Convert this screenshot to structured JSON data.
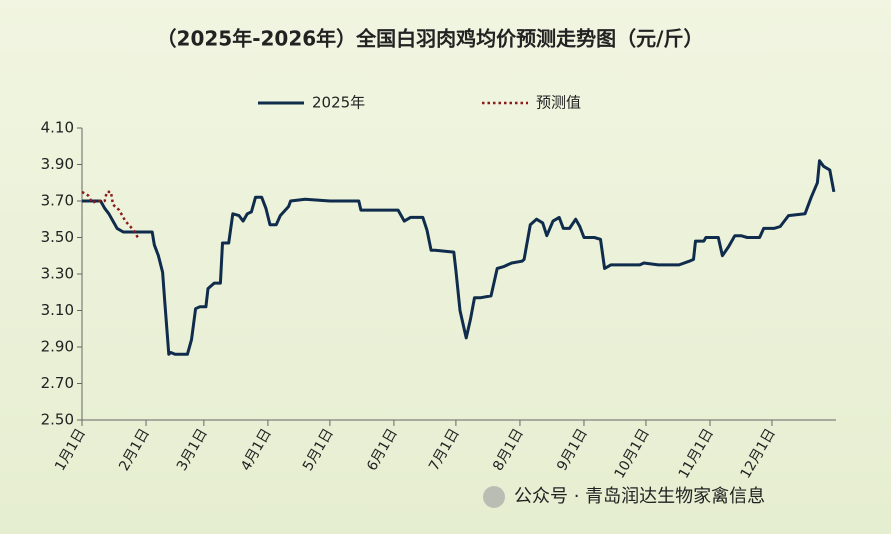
{
  "chart_data": {
    "type": "line",
    "title": "（2025年-2026年）全国白羽肉鸡均价预测走势图（元/斤）",
    "watermark": "公众号 · 青岛润达生物家禽信息",
    "xlim": [
      0,
      365
    ],
    "xticks": [
      {
        "value": 0,
        "label": "1月1日"
      },
      {
        "value": 31,
        "label": "2月1日"
      },
      {
        "value": 59,
        "label": "3月1日"
      },
      {
        "value": 90,
        "label": "4月1日"
      },
      {
        "value": 120,
        "label": "5月1日"
      },
      {
        "value": 151,
        "label": "6月1日"
      },
      {
        "value": 181,
        "label": "7月1日"
      },
      {
        "value": 212,
        "label": "8月1日"
      },
      {
        "value": 243,
        "label": "9月1日"
      },
      {
        "value": 273,
        "label": "10月1日"
      },
      {
        "value": 304,
        "label": "11月1日"
      },
      {
        "value": 334,
        "label": "12月1日"
      }
    ],
    "ylim": [
      2.5,
      4.1
    ],
    "yticks": [
      {
        "value": 2.5,
        "label": "2.50"
      },
      {
        "value": 2.7,
        "label": "2.70"
      },
      {
        "value": 2.9,
        "label": "2.90"
      },
      {
        "value": 3.1,
        "label": "3.10"
      },
      {
        "value": 3.3,
        "label": "3.30"
      },
      {
        "value": 3.5,
        "label": "3.50"
      },
      {
        "value": 3.7,
        "label": "3.70"
      },
      {
        "value": 3.9,
        "label": "3.90"
      },
      {
        "value": 4.1,
        "label": "4.10"
      }
    ],
    "grid": false,
    "series": [
      {
        "name": "2025年",
        "color": "#0f2c4c",
        "style": "solid",
        "x": [
          0,
          9,
          11,
          13,
          15,
          17,
          20,
          34,
          35,
          37,
          39,
          40,
          42,
          43,
          45,
          51,
          53,
          55,
          57,
          60,
          61,
          64,
          67,
          68,
          71,
          73,
          76,
          78,
          80,
          82,
          84,
          87,
          89,
          91,
          94,
          96,
          100,
          101,
          108,
          120,
          125,
          134,
          135,
          153,
          156,
          159,
          165,
          167,
          169,
          171,
          180,
          181,
          183,
          186,
          188,
          190,
          193,
          198,
          201,
          204,
          208,
          213,
          214,
          217,
          220,
          223,
          225,
          228,
          231,
          233,
          236,
          239,
          241,
          243,
          248,
          251,
          253,
          256,
          270,
          272,
          279,
          289,
          294,
          296,
          297,
          301,
          302,
          308,
          310,
          313,
          316,
          319,
          322,
          328,
          330,
          335,
          338,
          342,
          350,
          353,
          356,
          357,
          359,
          362,
          364
        ],
        "values": [
          3.7,
          3.7,
          3.66,
          3.63,
          3.59,
          3.55,
          3.53,
          3.53,
          3.46,
          3.4,
          3.31,
          3.16,
          2.86,
          2.87,
          2.86,
          2.86,
          2.94,
          3.11,
          3.12,
          3.12,
          3.22,
          3.25,
          3.25,
          3.47,
          3.47,
          3.63,
          3.62,
          3.59,
          3.63,
          3.64,
          3.72,
          3.72,
          3.66,
          3.57,
          3.57,
          3.62,
          3.67,
          3.7,
          3.71,
          3.7,
          3.7,
          3.7,
          3.65,
          3.65,
          3.59,
          3.61,
          3.61,
          3.54,
          3.43,
          3.43,
          3.42,
          3.32,
          3.1,
          2.95,
          3.05,
          3.17,
          3.17,
          3.18,
          3.33,
          3.34,
          3.36,
          3.37,
          3.38,
          3.57,
          3.6,
          3.58,
          3.51,
          3.59,
          3.61,
          3.55,
          3.55,
          3.6,
          3.56,
          3.5,
          3.5,
          3.49,
          3.33,
          3.35,
          3.35,
          3.36,
          3.35,
          3.35,
          3.37,
          3.38,
          3.48,
          3.48,
          3.5,
          3.5,
          3.4,
          3.45,
          3.51,
          3.51,
          3.5,
          3.5,
          3.55,
          3.55,
          3.56,
          3.62,
          3.63,
          3.72,
          3.8,
          3.92,
          3.89,
          3.87,
          3.75
        ]
      },
      {
        "name": "预测值",
        "color": "#8b1a1a",
        "style": "dotted",
        "x": [
          0,
          3,
          5,
          7,
          11,
          12,
          14,
          15,
          18,
          21,
          25,
          27
        ],
        "values": [
          3.75,
          3.73,
          3.69,
          3.7,
          3.7,
          3.75,
          3.75,
          3.68,
          3.65,
          3.59,
          3.54,
          3.5
        ]
      }
    ]
  }
}
